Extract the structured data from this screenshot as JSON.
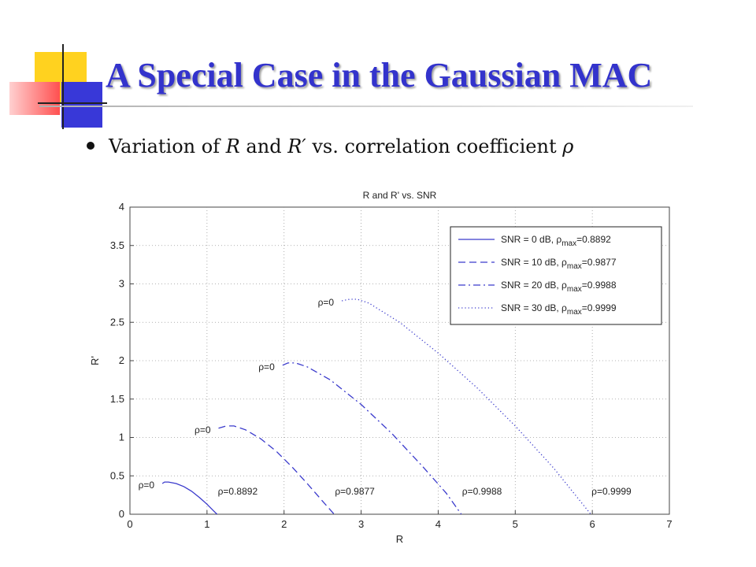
{
  "slide": {
    "title": "A Special Case in the Gaussian MAC",
    "bullet": {
      "t1": "Variation of ",
      "m1": "R",
      "t2": " and ",
      "m2": "R′",
      "t3": " vs. correlation coefficient ",
      "m3": "ρ"
    },
    "colors": {
      "title": "#3333cc",
      "accent_yellow": "#ffd21f",
      "accent_red": "#ff6060",
      "accent_blue": "#3838d8"
    }
  },
  "chart_data": {
    "type": "line",
    "title": "R and R' vs. SNR",
    "xlabel": "R",
    "ylabel": "R'",
    "xlim": [
      0,
      7
    ],
    "ylim": [
      0,
      4
    ],
    "xticks": [
      0,
      1,
      2,
      3,
      4,
      5,
      6,
      7
    ],
    "yticks": [
      0,
      0.5,
      1,
      1.5,
      2,
      2.5,
      3,
      3.5,
      4
    ],
    "grid": true,
    "legend_position": "top-right",
    "line_color": "#3a3acc",
    "series": [
      {
        "name": "SNR =  0 dB, ρmax=0.8892",
        "legend": {
          "prefix": "SNR =  0 dB, ρ",
          "sub": "max",
          "suffix": "=0.8892"
        },
        "style": "solid",
        "x": [
          0.42,
          0.45,
          0.5,
          0.6,
          0.7,
          0.8,
          0.9,
          1.0,
          1.06,
          1.1,
          1.13
        ],
        "y": [
          0.4,
          0.42,
          0.42,
          0.4,
          0.36,
          0.3,
          0.22,
          0.13,
          0.07,
          0.03,
          0.0
        ],
        "start_label": "ρ=0",
        "end_label": "ρ=0.8892"
      },
      {
        "name": "SNR = 10 dB, ρmax=0.9877",
        "legend": {
          "prefix": "SNR = 10 dB, ρ",
          "sub": "max",
          "suffix": "=0.9877"
        },
        "style": "dashed",
        "x": [
          1.15,
          1.25,
          1.35,
          1.5,
          1.7,
          1.9,
          2.1,
          2.3,
          2.5,
          2.65
        ],
        "y": [
          1.12,
          1.15,
          1.15,
          1.1,
          0.98,
          0.82,
          0.62,
          0.4,
          0.17,
          0.0
        ],
        "start_label": "ρ=0",
        "end_label": "ρ=0.9877"
      },
      {
        "name": "SNR = 20 dB, ρmax=0.9988",
        "legend": {
          "prefix": "SNR = 20 dB, ρ",
          "sub": "max",
          "suffix": "=0.9988"
        },
        "style": "dashdot",
        "x": [
          1.98,
          2.05,
          2.15,
          2.3,
          2.6,
          3.0,
          3.4,
          3.8,
          4.1,
          4.3
        ],
        "y": [
          1.94,
          1.97,
          1.97,
          1.92,
          1.75,
          1.43,
          1.05,
          0.62,
          0.28,
          0.0
        ],
        "start_label": "ρ=0",
        "end_label": "ρ=0.9988"
      },
      {
        "name": "SNR = 30 dB, ρmax=0.9999",
        "legend": {
          "prefix": "SNR = 30 dB, ρ",
          "sub": "max",
          "suffix": "=0.9999"
        },
        "style": "dotted",
        "x": [
          2.75,
          2.85,
          2.95,
          3.1,
          3.5,
          4.0,
          4.5,
          5.0,
          5.5,
          5.98
        ],
        "y": [
          2.78,
          2.8,
          2.8,
          2.75,
          2.5,
          2.1,
          1.65,
          1.15,
          0.6,
          0.0
        ],
        "start_label": "ρ=0",
        "end_label": "ρ=0.9999"
      }
    ]
  }
}
